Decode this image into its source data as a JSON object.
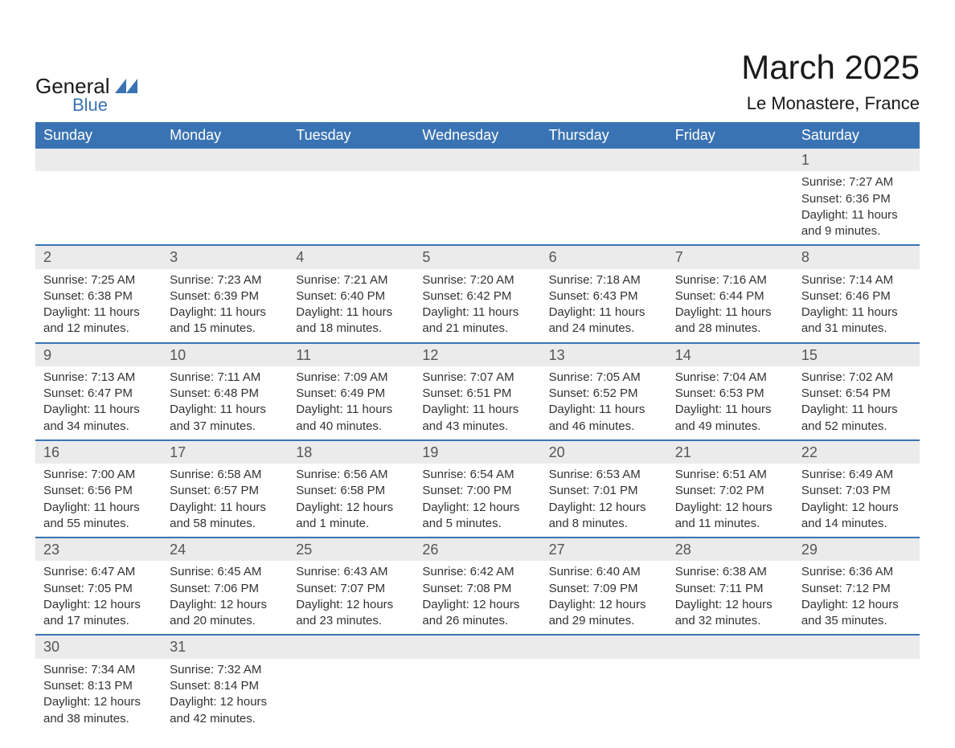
{
  "logo": {
    "word1": "General",
    "word2": "Blue"
  },
  "title": "March 2025",
  "location": "Le Monastere, France",
  "colors": {
    "header_bg": "#3a73b3",
    "header_fg": "#ffffff",
    "daynum_bg": "#ebebeb",
    "row_border": "#3a73b3",
    "text": "#333333",
    "logo_accent": "#3a73b3"
  },
  "day_headers": [
    "Sunday",
    "Monday",
    "Tuesday",
    "Wednesday",
    "Thursday",
    "Friday",
    "Saturday"
  ],
  "weeks": [
    [
      null,
      null,
      null,
      null,
      null,
      null,
      {
        "n": "1",
        "sr": "Sunrise: 7:27 AM",
        "ss": "Sunset: 6:36 PM",
        "d1": "Daylight: 11 hours",
        "d2": "and 9 minutes."
      }
    ],
    [
      {
        "n": "2",
        "sr": "Sunrise: 7:25 AM",
        "ss": "Sunset: 6:38 PM",
        "d1": "Daylight: 11 hours",
        "d2": "and 12 minutes."
      },
      {
        "n": "3",
        "sr": "Sunrise: 7:23 AM",
        "ss": "Sunset: 6:39 PM",
        "d1": "Daylight: 11 hours",
        "d2": "and 15 minutes."
      },
      {
        "n": "4",
        "sr": "Sunrise: 7:21 AM",
        "ss": "Sunset: 6:40 PM",
        "d1": "Daylight: 11 hours",
        "d2": "and 18 minutes."
      },
      {
        "n": "5",
        "sr": "Sunrise: 7:20 AM",
        "ss": "Sunset: 6:42 PM",
        "d1": "Daylight: 11 hours",
        "d2": "and 21 minutes."
      },
      {
        "n": "6",
        "sr": "Sunrise: 7:18 AM",
        "ss": "Sunset: 6:43 PM",
        "d1": "Daylight: 11 hours",
        "d2": "and 24 minutes."
      },
      {
        "n": "7",
        "sr": "Sunrise: 7:16 AM",
        "ss": "Sunset: 6:44 PM",
        "d1": "Daylight: 11 hours",
        "d2": "and 28 minutes."
      },
      {
        "n": "8",
        "sr": "Sunrise: 7:14 AM",
        "ss": "Sunset: 6:46 PM",
        "d1": "Daylight: 11 hours",
        "d2": "and 31 minutes."
      }
    ],
    [
      {
        "n": "9",
        "sr": "Sunrise: 7:13 AM",
        "ss": "Sunset: 6:47 PM",
        "d1": "Daylight: 11 hours",
        "d2": "and 34 minutes."
      },
      {
        "n": "10",
        "sr": "Sunrise: 7:11 AM",
        "ss": "Sunset: 6:48 PM",
        "d1": "Daylight: 11 hours",
        "d2": "and 37 minutes."
      },
      {
        "n": "11",
        "sr": "Sunrise: 7:09 AM",
        "ss": "Sunset: 6:49 PM",
        "d1": "Daylight: 11 hours",
        "d2": "and 40 minutes."
      },
      {
        "n": "12",
        "sr": "Sunrise: 7:07 AM",
        "ss": "Sunset: 6:51 PM",
        "d1": "Daylight: 11 hours",
        "d2": "and 43 minutes."
      },
      {
        "n": "13",
        "sr": "Sunrise: 7:05 AM",
        "ss": "Sunset: 6:52 PM",
        "d1": "Daylight: 11 hours",
        "d2": "and 46 minutes."
      },
      {
        "n": "14",
        "sr": "Sunrise: 7:04 AM",
        "ss": "Sunset: 6:53 PM",
        "d1": "Daylight: 11 hours",
        "d2": "and 49 minutes."
      },
      {
        "n": "15",
        "sr": "Sunrise: 7:02 AM",
        "ss": "Sunset: 6:54 PM",
        "d1": "Daylight: 11 hours",
        "d2": "and 52 minutes."
      }
    ],
    [
      {
        "n": "16",
        "sr": "Sunrise: 7:00 AM",
        "ss": "Sunset: 6:56 PM",
        "d1": "Daylight: 11 hours",
        "d2": "and 55 minutes."
      },
      {
        "n": "17",
        "sr": "Sunrise: 6:58 AM",
        "ss": "Sunset: 6:57 PM",
        "d1": "Daylight: 11 hours",
        "d2": "and 58 minutes."
      },
      {
        "n": "18",
        "sr": "Sunrise: 6:56 AM",
        "ss": "Sunset: 6:58 PM",
        "d1": "Daylight: 12 hours",
        "d2": "and 1 minute."
      },
      {
        "n": "19",
        "sr": "Sunrise: 6:54 AM",
        "ss": "Sunset: 7:00 PM",
        "d1": "Daylight: 12 hours",
        "d2": "and 5 minutes."
      },
      {
        "n": "20",
        "sr": "Sunrise: 6:53 AM",
        "ss": "Sunset: 7:01 PM",
        "d1": "Daylight: 12 hours",
        "d2": "and 8 minutes."
      },
      {
        "n": "21",
        "sr": "Sunrise: 6:51 AM",
        "ss": "Sunset: 7:02 PM",
        "d1": "Daylight: 12 hours",
        "d2": "and 11 minutes."
      },
      {
        "n": "22",
        "sr": "Sunrise: 6:49 AM",
        "ss": "Sunset: 7:03 PM",
        "d1": "Daylight: 12 hours",
        "d2": "and 14 minutes."
      }
    ],
    [
      {
        "n": "23",
        "sr": "Sunrise: 6:47 AM",
        "ss": "Sunset: 7:05 PM",
        "d1": "Daylight: 12 hours",
        "d2": "and 17 minutes."
      },
      {
        "n": "24",
        "sr": "Sunrise: 6:45 AM",
        "ss": "Sunset: 7:06 PM",
        "d1": "Daylight: 12 hours",
        "d2": "and 20 minutes."
      },
      {
        "n": "25",
        "sr": "Sunrise: 6:43 AM",
        "ss": "Sunset: 7:07 PM",
        "d1": "Daylight: 12 hours",
        "d2": "and 23 minutes."
      },
      {
        "n": "26",
        "sr": "Sunrise: 6:42 AM",
        "ss": "Sunset: 7:08 PM",
        "d1": "Daylight: 12 hours",
        "d2": "and 26 minutes."
      },
      {
        "n": "27",
        "sr": "Sunrise: 6:40 AM",
        "ss": "Sunset: 7:09 PM",
        "d1": "Daylight: 12 hours",
        "d2": "and 29 minutes."
      },
      {
        "n": "28",
        "sr": "Sunrise: 6:38 AM",
        "ss": "Sunset: 7:11 PM",
        "d1": "Daylight: 12 hours",
        "d2": "and 32 minutes."
      },
      {
        "n": "29",
        "sr": "Sunrise: 6:36 AM",
        "ss": "Sunset: 7:12 PM",
        "d1": "Daylight: 12 hours",
        "d2": "and 35 minutes."
      }
    ],
    [
      {
        "n": "30",
        "sr": "Sunrise: 7:34 AM",
        "ss": "Sunset: 8:13 PM",
        "d1": "Daylight: 12 hours",
        "d2": "and 38 minutes."
      },
      {
        "n": "31",
        "sr": "Sunrise: 7:32 AM",
        "ss": "Sunset: 8:14 PM",
        "d1": "Daylight: 12 hours",
        "d2": "and 42 minutes."
      },
      null,
      null,
      null,
      null,
      null
    ]
  ]
}
